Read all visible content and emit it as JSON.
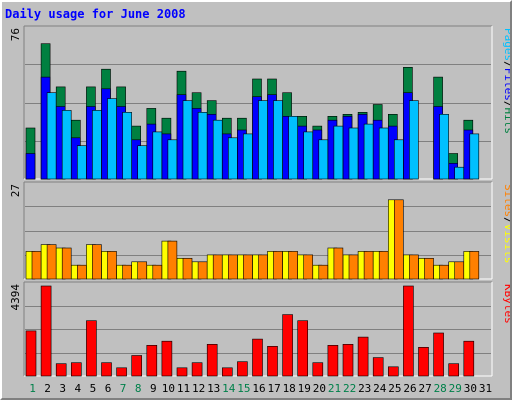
{
  "chart_data": {
    "type": "bar",
    "title": "Daily usage for June 2008",
    "days": [
      "1",
      "2",
      "3",
      "4",
      "5",
      "6",
      "7",
      "8",
      "9",
      "10",
      "11",
      "12",
      "13",
      "14",
      "15",
      "16",
      "17",
      "18",
      "19",
      "20",
      "21",
      "22",
      "23",
      "24",
      "25",
      "26",
      "27",
      "28",
      "29",
      "30",
      "31"
    ],
    "weekend_days": [
      "1",
      "7",
      "8",
      "14",
      "15",
      "21",
      "22",
      "28",
      "29"
    ],
    "panels": [
      {
        "id": "pages-files-hits",
        "scale_max_label": "76",
        "ylim": [
          0,
          76
        ],
        "legend": [
          "Pages",
          "/",
          "Files",
          "/",
          "Hits"
        ],
        "legend_colors": [
          "#00c0ff",
          "#000000",
          "#0000ff",
          "#000000",
          "#008040"
        ],
        "series": [
          {
            "name": "Hits",
            "color": "#008040",
            "values": [
              26,
              69,
              47,
              30,
              47,
              56,
              47,
              27,
              36,
              31,
              55,
              44,
              40,
              31,
              31,
              51,
              51,
              44,
              32,
              27,
              32,
              33,
              34,
              38,
              33,
              57,
              0,
              52,
              13,
              30,
              0
            ]
          },
          {
            "name": "Files",
            "color": "#0000ff",
            "values": [
              13,
              52,
              37,
              21,
              37,
              46,
              37,
              20,
              28,
              23,
              43,
              36,
              33,
              23,
              25,
              42,
              43,
              32,
              27,
              25,
              30,
              32,
              33,
              30,
              27,
              44,
              0,
              37,
              8,
              25,
              0
            ]
          },
          {
            "name": "Pages",
            "color": "#00c0ff",
            "values": [
              0,
              44,
              35,
              17,
              35,
              41,
              34,
              17,
              24,
              20,
              40,
              34,
              30,
              21,
              23,
              40,
              40,
              32,
              24,
              20,
              27,
              26,
              28,
              26,
              20,
              40,
              0,
              33,
              6,
              23,
              0
            ]
          }
        ]
      },
      {
        "id": "visits-sites",
        "scale_max_label": "27",
        "ylim": [
          0,
          27
        ],
        "legend": [
          "Sites",
          "/",
          "Visits"
        ],
        "legend_colors": [
          "#ff8000",
          "#000000",
          "#ffff00"
        ],
        "series": [
          {
            "name": "Visits",
            "color": "#ffff00",
            "values": [
              8,
              10,
              9,
              4,
              10,
              8,
              4,
              5,
              4,
              11,
              6,
              5,
              7,
              7,
              7,
              7,
              8,
              8,
              7,
              4,
              9,
              7,
              8,
              8,
              23,
              7,
              6,
              4,
              5,
              8,
              0
            ]
          },
          {
            "name": "Sites",
            "color": "#ff8000",
            "values": [
              8,
              10,
              9,
              4,
              10,
              8,
              4,
              5,
              4,
              11,
              6,
              5,
              7,
              7,
              7,
              7,
              8,
              8,
              7,
              4,
              9,
              7,
              8,
              8,
              23,
              7,
              6,
              4,
              5,
              8,
              0
            ]
          }
        ]
      },
      {
        "id": "kbytes",
        "scale_max_label": "4394",
        "ylim": [
          0,
          4394
        ],
        "legend": [
          "KBytes"
        ],
        "legend_colors": [
          "#ff0000"
        ],
        "series": [
          {
            "name": "KBytes",
            "color": "#ff0000",
            "values": [
              2200,
              4394,
              600,
              650,
              2700,
              650,
              400,
              1000,
              1500,
              1700,
              400,
              650,
              1550,
              400,
              700,
              1800,
              1450,
              3000,
              2700,
              650,
              1500,
              1550,
              1900,
              900,
              450,
              4394,
              1400,
              2100,
              600,
              1700,
              0
            ]
          }
        ]
      }
    ]
  }
}
